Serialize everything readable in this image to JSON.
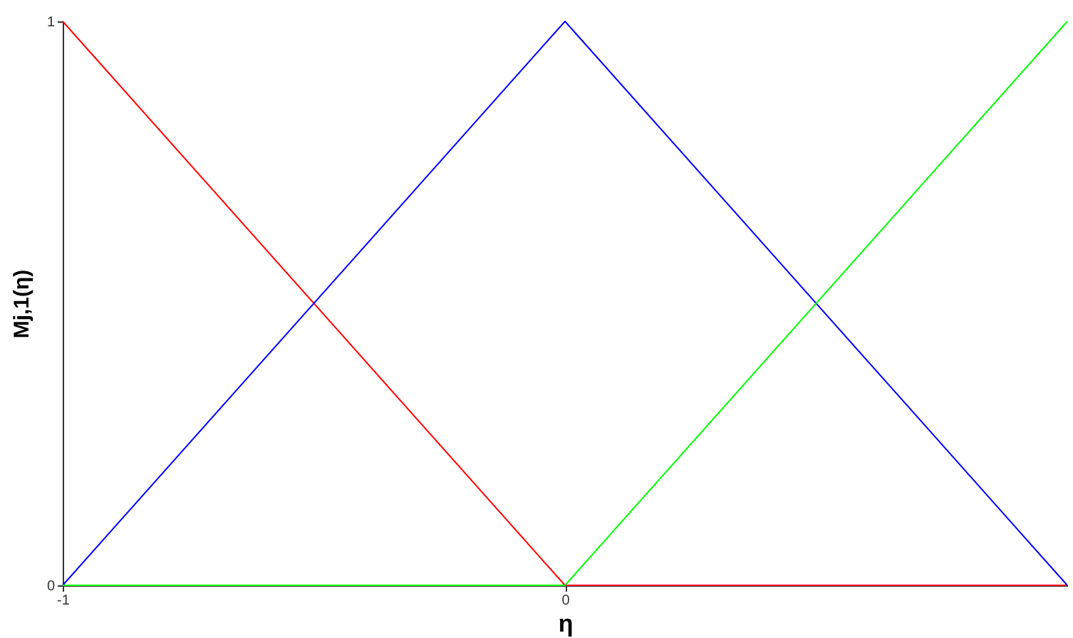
{
  "chart_data": {
    "type": "line",
    "xlabel": "η",
    "ylabel": "Mj,1(η)",
    "x": [
      -1,
      0,
      1
    ],
    "series": [
      {
        "color": "#ff0000",
        "values": [
          1,
          0,
          0
        ]
      },
      {
        "color": "#0000ff",
        "values": [
          0,
          1,
          0
        ]
      },
      {
        "color": "#00ff00",
        "values": [
          0,
          0,
          1
        ]
      }
    ],
    "xlim": [
      -1,
      1
    ],
    "ylim": [
      0,
      1
    ],
    "xticks": [
      -1,
      0
    ],
    "yticks": [
      0,
      1
    ],
    "grid": false
  }
}
